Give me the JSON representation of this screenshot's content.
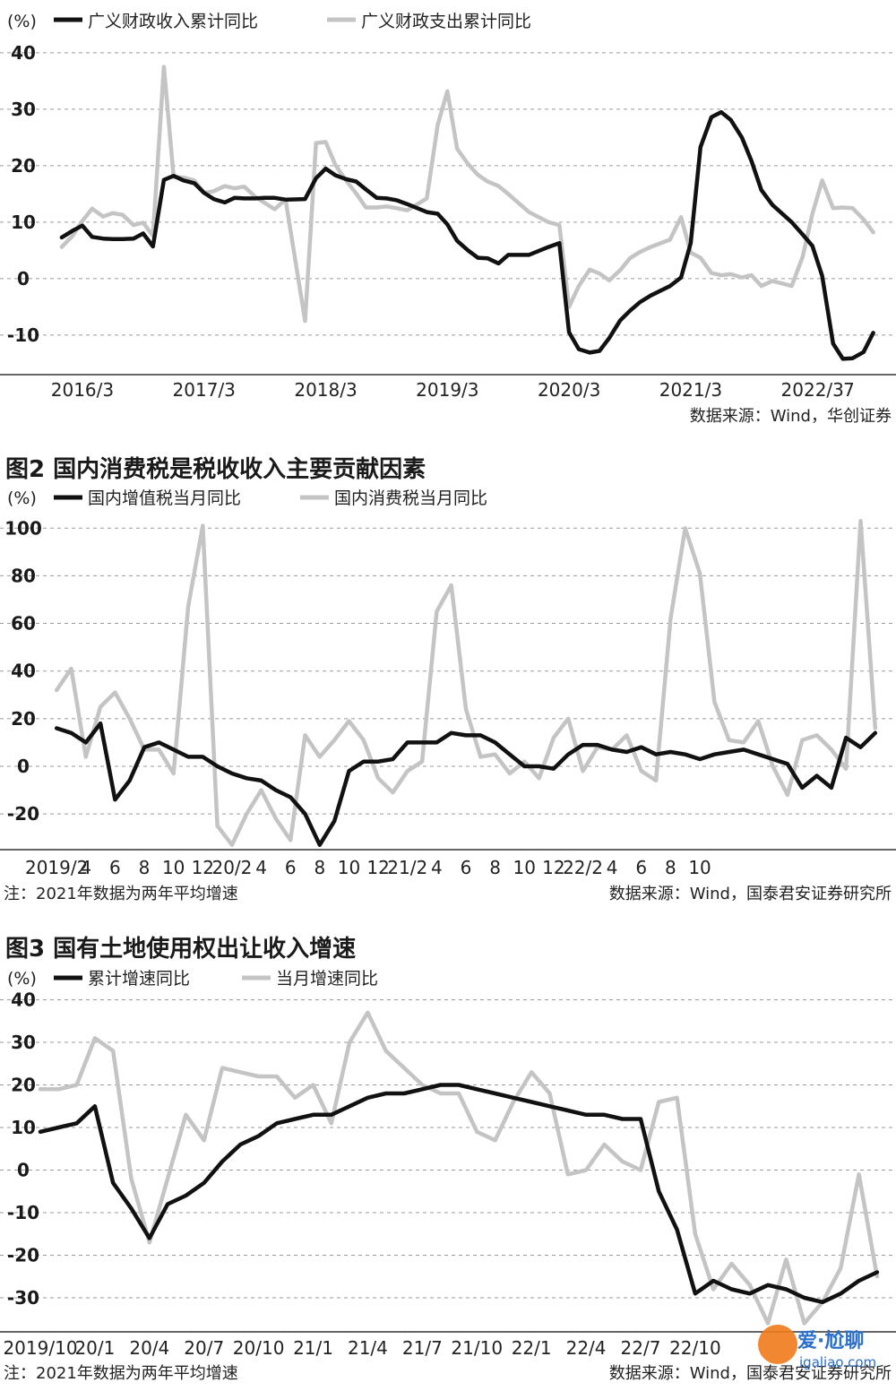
{
  "chart_data": [
    {
      "type": "line",
      "title": "",
      "unit": "(%)",
      "ylim": [
        -17,
        43
      ],
      "yticks": [
        40,
        30,
        20,
        10,
        0,
        -10
      ],
      "xticks": [
        "2016/3",
        "2017/3",
        "2018/3",
        "2019/3",
        "2020/3",
        "2021/3",
        "2022/3",
        "7"
      ],
      "source": "数据来源：Wind，华创证券",
      "legend": "top-left",
      "series": [
        {
          "name": "广义财政收入累计同比",
          "color": "#111111",
          "x": [
            2016.08,
            2016.17,
            2016.25,
            2016.33,
            2016.42,
            2016.5,
            2016.58,
            2016.67,
            2016.75,
            2016.83,
            2016.92,
            2017,
            2017.08,
            2017.17,
            2017.25,
            2017.33,
            2017.42,
            2017.5,
            2017.58,
            2017.67,
            2017.75,
            2017.83,
            2017.92,
            2018.08,
            2018.17,
            2018.25,
            2018.33,
            2018.42,
            2018.5,
            2018.58,
            2018.67,
            2018.75,
            2018.83,
            2018.92,
            2019.08,
            2019.17,
            2019.25,
            2019.33,
            2019.42,
            2019.5,
            2019.58,
            2019.67,
            2019.75,
            2019.83,
            2019.92,
            2020.08,
            2020.17,
            2020.25,
            2020.33,
            2020.42,
            2020.5,
            2020.58,
            2020.67,
            2020.75,
            2020.83,
            2020.92,
            2021.08,
            2021.17,
            2021.25,
            2021.33,
            2021.42,
            2021.5,
            2021.58,
            2021.67,
            2021.75,
            2021.83,
            2021.92,
            2022.08,
            2022.17,
            2022.25,
            2022.33,
            2022.42,
            2022.5,
            2022.58,
            2022.67,
            2022.75
          ],
          "values": [
            7.3,
            8.5,
            9.4,
            7.4,
            7.1,
            7,
            7,
            7.1,
            8,
            5.7,
            17.5,
            18.2,
            17.4,
            16.9,
            15.2,
            14.1,
            13.5,
            14.3,
            14.2,
            14.2,
            14.3,
            14.3,
            14,
            14.1,
            17.8,
            19.5,
            18.3,
            17.6,
            17.2,
            15.8,
            14.3,
            14.2,
            13.9,
            13.2,
            11.8,
            11.5,
            9.6,
            6.7,
            5,
            3.7,
            3.6,
            2.7,
            4.2,
            4.2,
            4.2,
            5.6,
            6.3,
            -9.5,
            -12.5,
            -13.1,
            -12.8,
            -10.5,
            -7.4,
            -5.7,
            -4.2,
            -3,
            -1.3,
            0.2,
            6.3,
            23.3,
            28.6,
            29.5,
            28.1,
            25,
            20.8,
            15.7,
            13.1,
            10,
            7.8,
            5.8,
            0.5,
            -11.5,
            -14.2,
            -14.1,
            -13,
            -9.6
          ]
        },
        {
          "name": "广义财政支出累计同比",
          "color": "#c4c4c4",
          "x": [
            2016.08,
            2016.17,
            2016.25,
            2016.33,
            2016.42,
            2016.5,
            2016.58,
            2016.67,
            2016.75,
            2016.83,
            2016.92,
            2017,
            2017.08,
            2017.17,
            2017.25,
            2017.33,
            2017.42,
            2017.5,
            2017.58,
            2017.67,
            2017.75,
            2017.83,
            2017.92,
            2018.08,
            2018.17,
            2018.25,
            2018.33,
            2018.42,
            2018.5,
            2018.58,
            2018.67,
            2018.75,
            2018.83,
            2018.92,
            2019.08,
            2019.17,
            2019.25,
            2019.33,
            2019.42,
            2019.5,
            2019.58,
            2019.67,
            2019.75,
            2019.83,
            2019.92,
            2020.08,
            2020.17,
            2020.25,
            2020.33,
            2020.42,
            2020.5,
            2020.58,
            2020.67,
            2020.75,
            2020.83,
            2020.92,
            2021.08,
            2021.17,
            2021.25,
            2021.33,
            2021.42,
            2021.5,
            2021.58,
            2021.67,
            2021.75,
            2021.83,
            2021.92,
            2022.08,
            2022.17,
            2022.25,
            2022.33,
            2022.42,
            2022.5,
            2022.58,
            2022.67,
            2022.75
          ],
          "values": [
            5.6,
            7.6,
            10.2,
            12.4,
            11,
            11.6,
            11.3,
            9.5,
            9.9,
            7.6,
            37.5,
            18,
            17.9,
            17.4,
            15.2,
            15.5,
            16.4,
            16,
            16.3,
            14.5,
            13.4,
            12.3,
            14,
            -7.5,
            24,
            24.2,
            20.1,
            17.3,
            15.1,
            12.6,
            12.6,
            12.8,
            12.5,
            12.1,
            14.2,
            27.2,
            33.2,
            23,
            20.3,
            18.4,
            17.2,
            16.4,
            15,
            13.5,
            11.8,
            10,
            9.5,
            -5,
            -1.3,
            1.6,
            0.9,
            -0.3,
            1.5,
            3.6,
            4.7,
            5.6,
            6.9,
            10.9,
            4.6,
            3.7,
            1,
            0.6,
            0.8,
            0.2,
            0.6,
            -1.3,
            -0.4,
            -1.3,
            3.9,
            11.5,
            17.4,
            12.5,
            12.6,
            12.5,
            10.5,
            8.2
          ]
        }
      ]
    },
    {
      "type": "line",
      "title": "图2 国内消费税是税收收入主要贡献因素",
      "unit": "(%)",
      "ylim": [
        -35,
        108
      ],
      "yticks": [
        100,
        80,
        60,
        40,
        20,
        0,
        -20
      ],
      "xticks": [
        "2019/2",
        "4",
        "6",
        "8",
        "10",
        "12",
        "20/2",
        "4",
        "6",
        "8",
        "10",
        "12",
        "21/2",
        "4",
        "6",
        "8",
        "10",
        "12",
        "22/2",
        "4",
        "6",
        "8",
        "10"
      ],
      "note": "注：2021年数据为两年平均增速",
      "source": "数据来源：Wind，国泰君安证券研究所",
      "legend": "top-left",
      "series": [
        {
          "name": "国内增值税当月同比",
          "color": "#111111",
          "x": [
            2,
            3,
            4,
            5,
            6,
            7,
            8,
            9,
            10,
            11,
            12,
            13,
            14,
            15,
            16,
            17,
            18,
            19,
            20,
            21,
            22,
            23,
            24,
            25,
            26,
            27,
            28,
            29,
            30,
            31,
            32,
            33,
            34,
            35,
            36,
            37,
            38,
            39,
            40,
            41,
            42,
            43,
            44,
            45,
            46,
            47,
            48,
            49,
            50,
            51,
            52,
            53,
            54,
            55,
            56,
            57,
            58
          ],
          "values": [
            16,
            14,
            10,
            18,
            -14,
            -6,
            8,
            10,
            7,
            4,
            4,
            0,
            -3,
            -5,
            -6,
            -10,
            -13,
            -20,
            -33,
            -23,
            -2,
            2,
            2,
            3,
            10,
            10,
            10,
            14,
            13,
            13,
            10,
            5,
            0,
            0,
            -1,
            5,
            9,
            9,
            7,
            6,
            8,
            5,
            6,
            5,
            3,
            5,
            6,
            7,
            5,
            3,
            1,
            -9,
            -4,
            -9,
            12,
            8,
            14
          ]
        },
        {
          "name": "国内消费税当月同比",
          "color": "#c4c4c4",
          "x": [
            2,
            3,
            4,
            5,
            6,
            7,
            8,
            9,
            10,
            11,
            12,
            13,
            14,
            15,
            16,
            17,
            18,
            19,
            20,
            21,
            22,
            23,
            24,
            25,
            26,
            27,
            28,
            29,
            30,
            31,
            32,
            33,
            34,
            35,
            36,
            37,
            38,
            39,
            40,
            41,
            42,
            43,
            44,
            45,
            46,
            47,
            48,
            49,
            50,
            51,
            52,
            53,
            54,
            55,
            56,
            57,
            58
          ],
          "values": [
            32,
            41,
            4,
            25,
            31,
            20,
            7,
            7,
            -3,
            67,
            101,
            -25,
            -33,
            -20,
            -10,
            -22,
            -31,
            13,
            4,
            11,
            19,
            11,
            -5,
            -11,
            -2,
            2,
            65,
            76,
            24,
            4,
            5,
            -3,
            2,
            -5,
            12,
            20,
            -2,
            8,
            7,
            13,
            -2,
            -6,
            62,
            100,
            81,
            27,
            11,
            10,
            19,
            0,
            -12,
            11,
            13,
            7,
            -1,
            103,
            16
          ]
        }
      ]
    },
    {
      "type": "line",
      "title": "图3 国有土地使用权出让收入增速",
      "unit": "(%)",
      "ylim": [
        -38,
        42
      ],
      "yticks": [
        40,
        30,
        20,
        10,
        0,
        -10,
        -20,
        -30
      ],
      "xticks": [
        "2019/10",
        "20/1",
        "20/4",
        "20/7",
        "20/10",
        "21/1",
        "21/4",
        "21/7",
        "21/10",
        "22/1",
        "22/4",
        "22/7",
        "22/10"
      ],
      "note": "注：2021年数据为两年平均增速",
      "source": "数据来源：Wind，国泰君安证券研究所",
      "legend": "top-left",
      "series": [
        {
          "name": "累计增速同比",
          "color": "#111111",
          "x": [
            10,
            11,
            12,
            13,
            14,
            15,
            16,
            17,
            18,
            19,
            20,
            21,
            22,
            23,
            24,
            25,
            26,
            27,
            28,
            29,
            30,
            31,
            32,
            33,
            34,
            35,
            36,
            37,
            38,
            39,
            40,
            41,
            42,
            43,
            44,
            45,
            46,
            47,
            48,
            49,
            50,
            51,
            52,
            53,
            54,
            55,
            56
          ],
          "values": [
            9,
            10,
            11,
            15,
            -3,
            -9,
            -16,
            -8,
            -6,
            -3,
            2,
            6,
            8,
            11,
            12,
            13,
            13,
            15,
            17,
            18,
            18,
            19,
            20,
            20,
            19,
            18,
            17,
            16,
            15,
            14,
            13,
            13,
            12,
            12,
            -5,
            -14,
            -29,
            -26,
            -28,
            -29,
            -27,
            -28,
            -30,
            -31,
            -29,
            -26,
            -24
          ]
        },
        {
          "name": "当月增速同比",
          "color": "#c4c4c4",
          "x": [
            10,
            11,
            12,
            13,
            14,
            15,
            16,
            17,
            18,
            19,
            20,
            21,
            22,
            23,
            24,
            25,
            26,
            27,
            28,
            29,
            30,
            31,
            32,
            33,
            34,
            35,
            36,
            37,
            38,
            39,
            40,
            41,
            42,
            43,
            44,
            45,
            46,
            47,
            48,
            49,
            50,
            51,
            52,
            53,
            54,
            55,
            56
          ],
          "values": [
            19,
            19,
            20,
            31,
            28,
            -2,
            -17,
            -2,
            13,
            7,
            24,
            23,
            22,
            22,
            17,
            20,
            11,
            30,
            37,
            28,
            24,
            20,
            18,
            18,
            9,
            7,
            16,
            23,
            18,
            -1,
            0,
            6,
            2,
            0,
            16,
            17,
            -15,
            -28,
            -22,
            -27,
            -36,
            -21,
            -36,
            -31,
            -23,
            -1,
            -25
          ]
        }
      ]
    }
  ],
  "ui": {
    "watermark_logo": "爱·尬聊",
    "watermark_url": "igaliao.com"
  }
}
